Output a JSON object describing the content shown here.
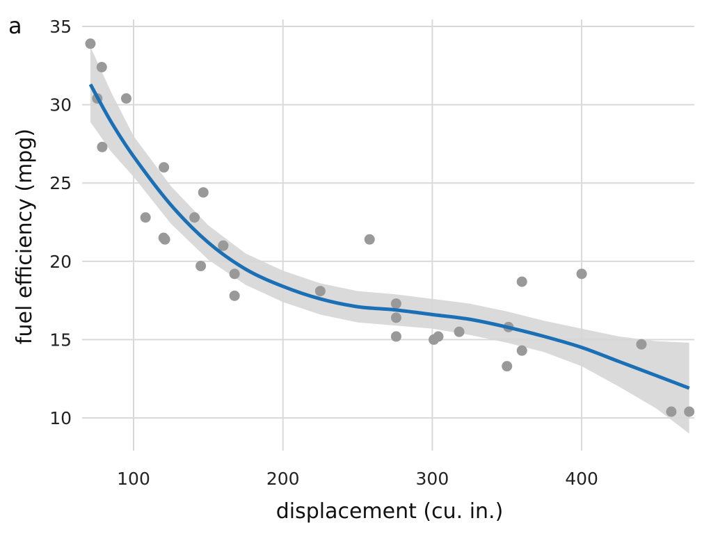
{
  "chart_data": {
    "type": "scatter",
    "panel_label": "a",
    "xlabel": "displacement (cu. in.)",
    "ylabel": "fuel efficiency (mpg)",
    "xlim": [
      60,
      480
    ],
    "ylim": [
      8,
      36
    ],
    "xticks": [
      100,
      200,
      300,
      400
    ],
    "yticks": [
      10,
      15,
      20,
      25,
      30,
      35
    ],
    "grid": true,
    "points": [
      {
        "x": 160,
        "y": 21.0
      },
      {
        "x": 160,
        "y": 21.0
      },
      {
        "x": 108,
        "y": 22.8
      },
      {
        "x": 258,
        "y": 21.4
      },
      {
        "x": 360,
        "y": 18.7
      },
      {
        "x": 225,
        "y": 18.1
      },
      {
        "x": 360,
        "y": 14.3
      },
      {
        "x": 146.7,
        "y": 24.4
      },
      {
        "x": 140.8,
        "y": 22.8
      },
      {
        "x": 167.6,
        "y": 19.2
      },
      {
        "x": 167.6,
        "y": 17.8
      },
      {
        "x": 275.8,
        "y": 16.4
      },
      {
        "x": 275.8,
        "y": 17.3
      },
      {
        "x": 275.8,
        "y": 15.2
      },
      {
        "x": 472,
        "y": 10.4
      },
      {
        "x": 460,
        "y": 10.4
      },
      {
        "x": 440,
        "y": 14.7
      },
      {
        "x": 78.7,
        "y": 32.4
      },
      {
        "x": 75.7,
        "y": 30.4
      },
      {
        "x": 71.1,
        "y": 33.9
      },
      {
        "x": 120.1,
        "y": 21.5
      },
      {
        "x": 318,
        "y": 15.5
      },
      {
        "x": 304,
        "y": 15.2
      },
      {
        "x": 350,
        "y": 13.3
      },
      {
        "x": 400,
        "y": 19.2
      },
      {
        "x": 79,
        "y": 27.3
      },
      {
        "x": 120.3,
        "y": 26.0
      },
      {
        "x": 95.1,
        "y": 30.4
      },
      {
        "x": 351,
        "y": 15.8
      },
      {
        "x": 145,
        "y": 19.7
      },
      {
        "x": 301,
        "y": 15.0
      },
      {
        "x": 121,
        "y": 21.4
      }
    ],
    "smooth": {
      "x": [
        71.1,
        85,
        100,
        125,
        150,
        175,
        200,
        225,
        250,
        275,
        300,
        325,
        350,
        375,
        400,
        425,
        450,
        472
      ],
      "y": [
        31.3,
        28.9,
        26.7,
        23.6,
        21.2,
        19.5,
        18.4,
        17.6,
        17.1,
        16.9,
        16.6,
        16.3,
        15.8,
        15.2,
        14.5,
        13.6,
        12.7,
        11.9
      ],
      "lower": [
        28.9,
        27.0,
        25.4,
        22.4,
        20.1,
        18.5,
        17.4,
        16.6,
        16.1,
        15.9,
        15.7,
        15.3,
        14.8,
        14.2,
        13.3,
        12.0,
        10.6,
        9.0
      ],
      "upper": [
        33.7,
        30.8,
        28.0,
        24.8,
        22.3,
        20.5,
        19.4,
        18.6,
        18.1,
        17.9,
        17.6,
        17.3,
        16.8,
        16.2,
        15.7,
        15.2,
        14.9,
        14.8
      ]
    },
    "colors": {
      "points": "#999999",
      "line": "#1a6fb5",
      "band": "#d6d6d6",
      "grid": "#d9d9d9"
    }
  }
}
